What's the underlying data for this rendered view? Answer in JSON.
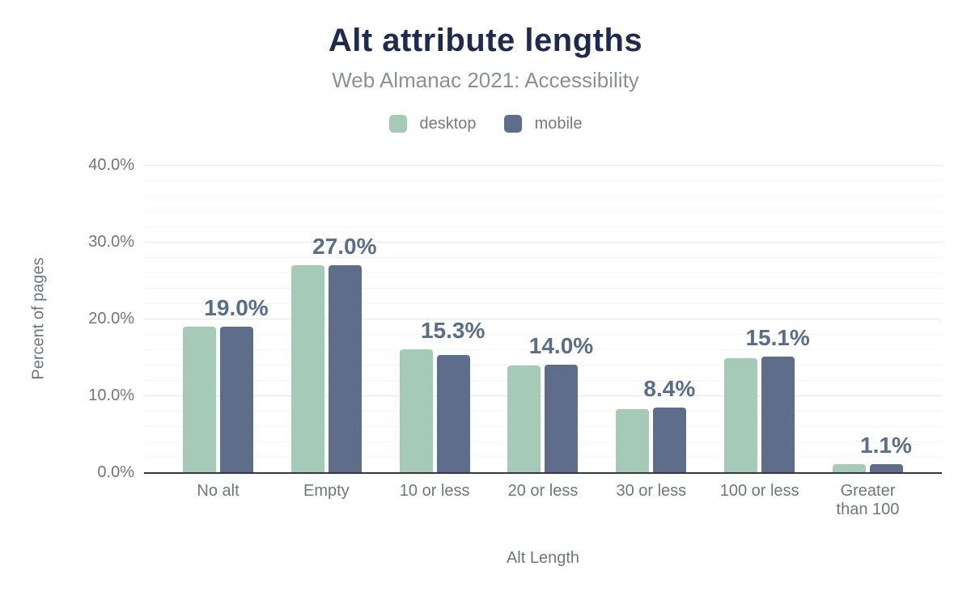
{
  "header": {
    "title": "Alt attribute lengths",
    "subtitle": "Web Almanac 2021: Accessibility"
  },
  "legend": {
    "items": [
      {
        "label": "desktop",
        "color": "#a5cab7"
      },
      {
        "label": "mobile",
        "color": "#5e6e8a"
      }
    ]
  },
  "chart_data": {
    "type": "bar",
    "title": "Alt attribute lengths",
    "subtitle": "Web Almanac 2021: Accessibility",
    "categories": [
      "No alt",
      "Empty",
      "10 or less",
      "20 or less",
      "30 or less",
      "100 or less",
      "Greater than 100"
    ],
    "series": [
      {
        "name": "desktop",
        "color": "#a5cab7",
        "values": [
          19.0,
          26.9,
          16.0,
          13.9,
          8.2,
          14.8,
          1.1
        ]
      },
      {
        "name": "mobile",
        "color": "#5e6e8a",
        "values": [
          19.0,
          27.0,
          15.3,
          14.0,
          8.4,
          15.1,
          1.1
        ]
      }
    ],
    "bar_labels": [
      "19.0%",
      "27.0%",
      "15.3%",
      "14.0%",
      "8.4%",
      "15.1%",
      "1.1%"
    ],
    "xlabel": "Alt Length",
    "ylabel": "Percent of pages",
    "ylim": [
      0,
      40
    ],
    "yticks": [
      {
        "value": 0,
        "label": "0.0%"
      },
      {
        "value": 10,
        "label": "10.0%"
      },
      {
        "value": 20,
        "label": "20.0%"
      },
      {
        "value": 30,
        "label": "30.0%"
      },
      {
        "value": 40,
        "label": "40.0%"
      }
    ],
    "grid": {
      "minor_step": 2,
      "major_step": 10,
      "visible": true
    },
    "legend_position": "top",
    "colors": {
      "title": "#1e2b4f",
      "subtitle": "#8a9097",
      "axis_text": "#71767e",
      "value_label": "#5b6e89",
      "axis_line": "#35393f"
    }
  }
}
